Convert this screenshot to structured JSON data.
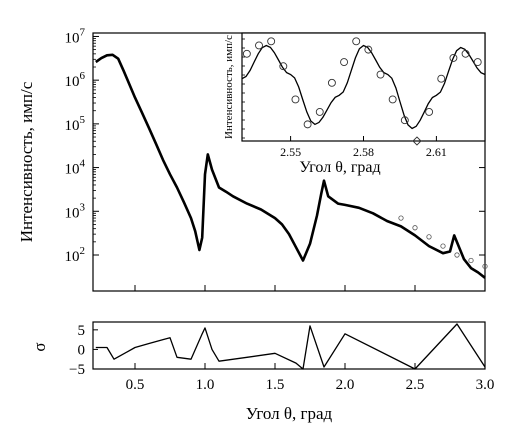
{
  "chart_data": [
    {
      "id": "main",
      "type": "line",
      "scale_y": "log",
      "xlim": [
        0.2,
        3.0
      ],
      "ylim": [
        15,
        12000000
      ],
      "ylabel": "Интенсивность, имп/с",
      "xlabel": "",
      "y_ticks": [
        {
          "value": 100,
          "base": "10",
          "exp": "2"
        },
        {
          "value": 1000,
          "base": "10",
          "exp": "3"
        },
        {
          "value": 10000,
          "base": "10",
          "exp": "4"
        },
        {
          "value": 100000,
          "base": "10",
          "exp": "5"
        },
        {
          "value": 1000000,
          "base": "10",
          "exp": "6"
        },
        {
          "value": 10000000,
          "base": "10",
          "exp": "7"
        }
      ],
      "series": [
        {
          "style": "line",
          "color": "#000000",
          "x": [
            0.22,
            0.26,
            0.3,
            0.34,
            0.38,
            0.42,
            0.46,
            0.5,
            0.55,
            0.6,
            0.65,
            0.7,
            0.75,
            0.8,
            0.85,
            0.9,
            0.93,
            0.96,
            0.98,
            1.0,
            1.02,
            1.05,
            1.1,
            1.15,
            1.2,
            1.3,
            1.4,
            1.5,
            1.55,
            1.6,
            1.65,
            1.7,
            1.75,
            1.8,
            1.83,
            1.85,
            1.88,
            1.95,
            2.0,
            2.1,
            2.2,
            2.3,
            2.4,
            2.5,
            2.6,
            2.7,
            2.75,
            2.78,
            2.85,
            2.9,
            2.95,
            3.0
          ],
          "y": [
            2600000,
            3200000,
            3700000,
            3800000,
            3100000,
            1600000,
            800000,
            400000,
            180000,
            80000,
            35000,
            15000,
            7000,
            3500,
            1600,
            700,
            350,
            130,
            250,
            7000,
            20000,
            9000,
            3500,
            2800,
            2200,
            1500,
            1100,
            700,
            500,
            300,
            150,
            75,
            180,
            800,
            2500,
            5000,
            2200,
            1500,
            1400,
            1200,
            900,
            600,
            450,
            280,
            160,
            110,
            120,
            280,
            80,
            50,
            40,
            30
          ]
        },
        {
          "style": "markers",
          "color": "#555555",
          "x": [
            2.4,
            2.5,
            2.6,
            2.7,
            2.8,
            2.9,
            3.0
          ],
          "y": [
            700,
            420,
            260,
            160,
            100,
            75,
            55
          ]
        }
      ]
    },
    {
      "id": "residual",
      "type": "line",
      "xlim": [
        0.2,
        3.0
      ],
      "ylim": [
        -5,
        7
      ],
      "ylabel": "σ",
      "xlabel": "Угол θ, град",
      "x_ticks": [
        "0.5",
        "1.0",
        "1.5",
        "2.0",
        "2.5",
        "3.0"
      ],
      "y_ticks": [
        "5",
        "0",
        "−5"
      ],
      "series": [
        {
          "color": "#000000",
          "x": [
            0.22,
            0.3,
            0.35,
            0.4,
            0.45,
            0.5,
            0.6,
            0.7,
            0.75,
            0.8,
            0.9,
            0.98,
            1.0,
            1.05,
            1.1,
            1.3,
            1.5,
            1.65,
            1.7,
            1.75,
            1.85,
            2.0,
            2.5,
            2.8,
            3.0
          ],
          "y": [
            0.5,
            0.5,
            -2.5,
            -1.5,
            -0.5,
            0.5,
            1.5,
            2.5,
            3.0,
            -2.0,
            -2.5,
            4.0,
            5.5,
            0.0,
            -3.0,
            -2.0,
            -1.0,
            -3.5,
            -5.0,
            6.0,
            -4.5,
            4.0,
            -5.0,
            6.5,
            -4.5
          ]
        }
      ]
    },
    {
      "id": "inset",
      "type": "scatter",
      "xlim": [
        2.53,
        2.63
      ],
      "ylim": [
        -1.3,
        1.3
      ],
      "ylabel": "Интенсивность, имп/с",
      "xlabel": "Угол θ, град",
      "x_ticks": [
        "2.55",
        "2.58",
        "2.61"
      ],
      "series": [
        {
          "style": "line",
          "color": "#000000",
          "x": [
            2.53,
            2.54,
            2.55,
            2.56,
            2.57,
            2.58,
            2.59,
            2.6,
            2.61,
            2.62,
            2.63
          ],
          "y": [
            0.2,
            1.0,
            0.3,
            -0.9,
            -0.2,
            1.0,
            0.3,
            -1.0,
            -0.2,
            0.95,
            0.3
          ]
        },
        {
          "style": "markers",
          "color": "#333333",
          "x": [
            2.532,
            2.537,
            2.542,
            2.547,
            2.552,
            2.557,
            2.562,
            2.567,
            2.572,
            2.577,
            2.582,
            2.587,
            2.592,
            2.597,
            2.602,
            2.607,
            2.612,
            2.617,
            2.622,
            2.627
          ],
          "y": [
            0.8,
            1.0,
            1.1,
            0.5,
            -0.3,
            -0.9,
            -0.6,
            0.1,
            0.6,
            1.1,
            0.9,
            0.3,
            -0.3,
            -0.8,
            -1.3,
            -0.6,
            0.2,
            0.7,
            0.8,
            0.6
          ]
        }
      ]
    }
  ]
}
